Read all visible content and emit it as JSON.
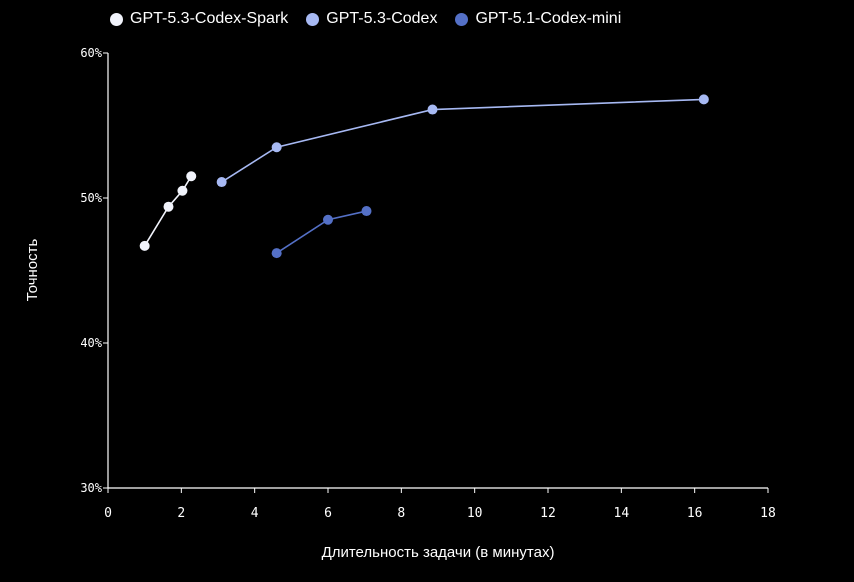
{
  "chart_data": {
    "type": "line",
    "xlabel": "Длительность задачи (в минутах)",
    "ylabel": "Точность",
    "xlim": [
      0,
      18
    ],
    "ylim": [
      30,
      60
    ],
    "x_ticks": [
      "0",
      "2",
      "4",
      "6",
      "8",
      "10",
      "12",
      "14",
      "16",
      "18"
    ],
    "y_ticks": [
      "30%",
      "40%",
      "50%",
      "60%"
    ],
    "legend_position": "top-left",
    "grid": false,
    "series": [
      {
        "name": "GPT-5.3-Codex-Spark",
        "color": "#f1f3fb",
        "points": [
          {
            "x": 1.0,
            "y": 46.7
          },
          {
            "x": 1.65,
            "y": 49.4
          },
          {
            "x": 2.03,
            "y": 50.5
          },
          {
            "x": 2.27,
            "y": 51.5
          }
        ]
      },
      {
        "name": "GPT-5.3-Codex",
        "color": "#a7b9f3",
        "points": [
          {
            "x": 3.1,
            "y": 51.1
          },
          {
            "x": 4.6,
            "y": 53.5
          },
          {
            "x": 8.85,
            "y": 56.1
          },
          {
            "x": 16.25,
            "y": 56.8
          }
        ]
      },
      {
        "name": "GPT-5.1-Codex-mini",
        "color": "#5470c6",
        "points": [
          {
            "x": 4.6,
            "y": 46.2
          },
          {
            "x": 6.0,
            "y": 48.5
          },
          {
            "x": 7.05,
            "y": 49.1
          }
        ]
      }
    ]
  }
}
